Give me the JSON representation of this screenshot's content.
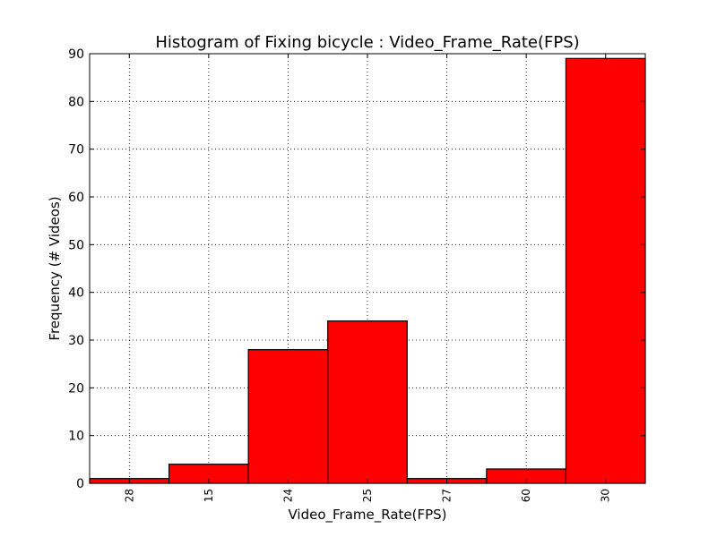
{
  "chart_data": {
    "type": "bar",
    "title": "Histogram of Fixing bicycle : Video_Frame_Rate(FPS)",
    "xlabel": "Video_Frame_Rate(FPS)",
    "ylabel": "Frequency (# Videos)",
    "categories": [
      "28",
      "15",
      "24",
      "25",
      "27",
      "60",
      "30"
    ],
    "values": [
      1,
      4,
      28,
      34,
      1,
      3,
      89
    ],
    "ylim": [
      0,
      90
    ],
    "yticks": [
      "0",
      "10",
      "20",
      "30",
      "40",
      "50",
      "60",
      "70",
      "80",
      "90"
    ],
    "grid": true,
    "bar_color": "#ff0000",
    "edge_color": "#000000"
  }
}
